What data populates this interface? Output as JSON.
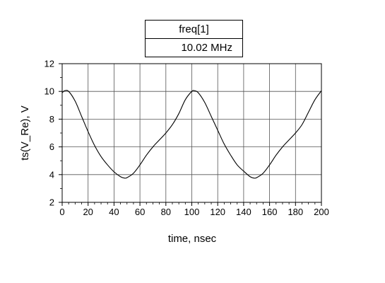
{
  "chart_data": {
    "type": "line",
    "table": {
      "header": "freq[1]",
      "value": "10.02 MHz"
    },
    "xlabel": "time, nsec",
    "ylabel": "ts(V_Re), V",
    "xlim": [
      0,
      200
    ],
    "ylim": [
      2,
      12
    ],
    "x_ticks": [
      0,
      20,
      40,
      60,
      80,
      100,
      120,
      140,
      160,
      180,
      200
    ],
    "y_ticks": [
      2,
      4,
      6,
      8,
      10,
      12
    ],
    "grid": true,
    "series": [
      {
        "color": "#000000",
        "x": [
          0,
          2,
          5,
          10,
          15,
          20,
          25,
          30,
          35,
          40,
          45,
          48,
          50,
          55,
          60,
          65,
          70,
          75,
          80,
          85,
          90,
          95,
          100,
          102,
          105,
          110,
          115,
          120,
          125,
          130,
          135,
          140,
          145,
          148,
          150,
          155,
          160,
          165,
          170,
          175,
          180,
          185,
          190,
          195,
          200
        ],
        "y": [
          9.9,
          10.05,
          10.0,
          9.3,
          8.2,
          7.1,
          6.1,
          5.3,
          4.7,
          4.2,
          3.85,
          3.75,
          3.78,
          4.1,
          4.7,
          5.4,
          6.0,
          6.5,
          7.0,
          7.6,
          8.4,
          9.4,
          10.0,
          10.05,
          9.9,
          9.2,
          8.2,
          7.2,
          6.2,
          5.4,
          4.7,
          4.25,
          3.85,
          3.75,
          3.78,
          4.1,
          4.7,
          5.4,
          6.0,
          6.5,
          7.0,
          7.6,
          8.5,
          9.4,
          10.05
        ]
      }
    ]
  }
}
